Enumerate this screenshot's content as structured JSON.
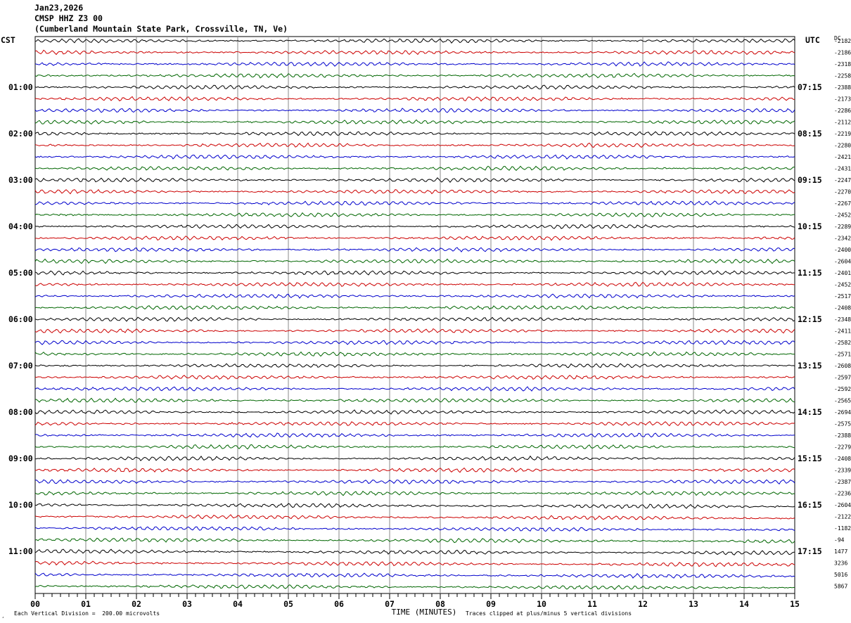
{
  "header": {
    "date": "Jan23,2026",
    "station": "CMSP HHZ Z3 00",
    "location": "(Cumberland Mountain State Park, Crossville, TN, Ve)"
  },
  "left_zone": "CST",
  "right_zone": "UTC",
  "dc_label": "DC",
  "footer": {
    "scale_text": "Each Vertical Division =  200.00 microvolts",
    "clip_text": "Traces clipped at plus/minus 5 vertical divisions",
    "corner_mark": "¸"
  },
  "chart_data": {
    "type": "line",
    "title": "CMSP HHZ Z3 00",
    "xlabel": "TIME (MINUTES)",
    "ylabel": "",
    "x_ticks": [
      "00",
      "01",
      "02",
      "03",
      "04",
      "05",
      "06",
      "07",
      "08",
      "09",
      "10",
      "11",
      "12",
      "13",
      "14",
      "15"
    ],
    "xlim": [
      0,
      15
    ],
    "traces_per_hour": 4,
    "trace_colors": [
      "#000000",
      "#cc0000",
      "#0000cc",
      "#006600"
    ],
    "left_hour_labels": [
      "01:00",
      "02:00",
      "03:00",
      "04:00",
      "05:00",
      "06:00",
      "07:00",
      "08:00",
      "09:00",
      "10:00",
      "11:00"
    ],
    "right_hour_labels": [
      "07:15",
      "08:15",
      "09:15",
      "10:15",
      "11:15",
      "12:15",
      "13:15",
      "14:15",
      "15:15",
      "16:15",
      "17:15"
    ],
    "dc_offsets": [
      "-2182",
      "-2186",
      "-2318",
      "-2258",
      "-2388",
      "-2173",
      "-2286",
      "-2112",
      "-2219",
      "-2280",
      "-2421",
      "-2431",
      "-2247",
      "-2270",
      "-2267",
      "-2452",
      "-2289",
      "-2342",
      "-2400",
      "-2604",
      "-2401",
      "-2452",
      "-2517",
      "-2408",
      "-2348",
      "-2411",
      "-2582",
      "-2571",
      "-2608",
      "-2597",
      "-2592",
      "-2565",
      "-2694",
      "-2575",
      "-2388",
      "-2279",
      "-2408",
      "-2339",
      "-2387",
      "-2236",
      "-2604",
      "-2122",
      "-1182",
      "-94",
      "1477",
      "3236",
      "5016",
      "5867"
    ]
  }
}
